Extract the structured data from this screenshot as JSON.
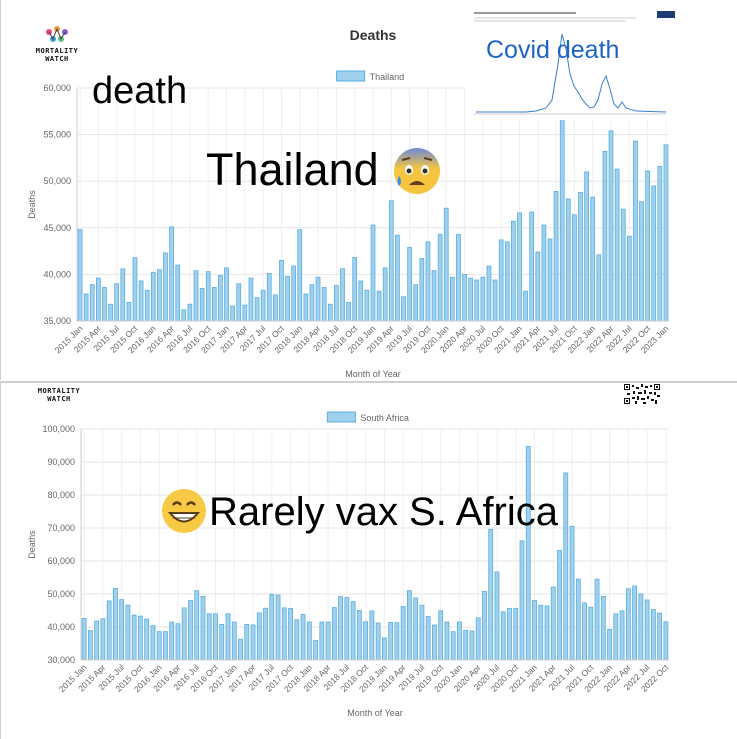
{
  "top": {
    "logo": {
      "line1": "MORTALITY",
      "line2": "WATCH"
    },
    "title": "Deaths",
    "legend": "Thailand",
    "ylabel": "Deaths",
    "xlabel": "Month of Year",
    "overlay_word1": "death",
    "overlay_country": "Thailand",
    "overlay_inset_title": "Covid death",
    "colors": {
      "bar_fill": "#9fd0ee",
      "bar_stroke": "#5aaee0"
    }
  },
  "bottom": {
    "logo": {
      "line1": "MORTALITY",
      "line2": "WATCH"
    },
    "legend": "South Africa",
    "ylabel": "Deaths",
    "xlabel": "Month of Year",
    "overlay_text": "Rarely vax  S. Africa"
  },
  "chart_data": [
    {
      "type": "bar",
      "title": "Deaths",
      "series": [
        {
          "name": "Thailand"
        }
      ],
      "ylim": [
        35000,
        60000
      ],
      "yticks": [
        "35,000",
        "40,000",
        "45,000",
        "50,000",
        "55,000",
        "60,000"
      ],
      "xlabel": "Month of Year",
      "ylabel": "Deaths",
      "tick_labels": [
        "2015 Jan",
        "2015 Apr",
        "2015 Jul",
        "2015 Oct",
        "2016 Jan",
        "2016 Apr",
        "2016 Jul",
        "2016 Oct",
        "2017 Jan",
        "2017 Apr",
        "2017 Jul",
        "2017 Oct",
        "2018 Jan",
        "2018 Apr",
        "2018 Jul",
        "2018 Oct",
        "2019 Jan",
        "2019 Apr",
        "2019 Jul",
        "2019 Oct",
        "2020 Jan",
        "2020 Apr",
        "2020 Jul",
        "2020 Oct",
        "2021 Jan",
        "2021 Apr",
        "2021 Jul",
        "2021 Oct",
        "2022 Jan",
        "2022 Apr",
        "2022 Jul",
        "2022 Oct",
        "2023 Jan"
      ],
      "values": [
        44800,
        37900,
        38900,
        39600,
        38600,
        36800,
        39000,
        40600,
        37000,
        41800,
        39300,
        38300,
        40200,
        40500,
        42300,
        45100,
        41000,
        36200,
        36800,
        40400,
        38500,
        40300,
        38600,
        39900,
        40700,
        36600,
        39000,
        36700,
        39600,
        37500,
        38300,
        40100,
        37800,
        41500,
        39800,
        40900,
        44800,
        37900,
        38900,
        39700,
        38600,
        36800,
        38800,
        40600,
        37000,
        41800,
        39300,
        38300,
        45300,
        38200,
        40700,
        47900,
        44200,
        37600,
        42900,
        38900,
        41700,
        43500,
        40400,
        44300,
        47100,
        39700,
        44300,
        40000,
        39600,
        39400,
        39700,
        40900,
        39400,
        43700,
        43500,
        45700,
        46600,
        38200,
        46700,
        42400,
        45300,
        43800,
        48900,
        56600,
        48100,
        46400,
        48800,
        51000,
        48300,
        42100,
        53200,
        55400,
        51300,
        47000,
        44100,
        54300,
        47800,
        51100,
        49500,
        51600,
        53900
      ]
    },
    {
      "type": "bar",
      "series": [
        {
          "name": "South Africa"
        }
      ],
      "ylim": [
        30000,
        100000
      ],
      "yticks": [
        "30,000",
        "40,000",
        "50,000",
        "60,000",
        "70,000",
        "80,000",
        "90,000",
        "100,000"
      ],
      "xlabel": "Month of Year",
      "ylabel": "Deaths",
      "tick_labels": [
        "2015 Jan",
        "2015 Apr",
        "2015 Jul",
        "2015 Oct",
        "2016 Jan",
        "2016 Apr",
        "2016 Jul",
        "2016 Oct",
        "2017 Jan",
        "2017 Apr",
        "2017 Jul",
        "2017 Oct",
        "2018 Jan",
        "2018 Apr",
        "2018 Jul",
        "2018 Oct",
        "2019 Jan",
        "2019 Apr",
        "2019 Jul",
        "2019 Oct",
        "2020 Jan",
        "2020 Apr",
        "2020 Jul",
        "2020 Oct",
        "2021 Jan",
        "2021 Apr",
        "2021 Jul",
        "2021 Oct",
        "2022 Jan",
        "2022 Apr",
        "2022 Jul",
        "2022 Oct"
      ],
      "values": [
        42600,
        38900,
        41800,
        42500,
        47900,
        51700,
        48300,
        46600,
        43600,
        43300,
        42400,
        40400,
        38600,
        38600,
        41500,
        41000,
        45800,
        48000,
        51000,
        49300,
        44000,
        44000,
        40800,
        44000,
        41500,
        36300,
        40800,
        40600,
        44300,
        45700,
        49900,
        49700,
        45800,
        45600,
        42200,
        43800,
        41500,
        35900,
        41500,
        41500,
        45900,
        49200,
        48900,
        47700,
        45000,
        41600,
        44900,
        41200,
        36700,
        41400,
        41300,
        46200,
        51000,
        48800,
        46600,
        43200,
        40600,
        44900,
        41500,
        38600,
        41500,
        39000,
        38800,
        42800,
        50800,
        69600,
        56700,
        44600,
        45600,
        45600,
        66100,
        94700,
        48000,
        46600,
        46400,
        52100,
        63200,
        86700,
        70500,
        54500,
        47300,
        46000,
        54500,
        49300,
        39300,
        44000,
        44900,
        51600,
        52400,
        50000,
        48200,
        45300,
        44200,
        41600
      ]
    }
  ]
}
